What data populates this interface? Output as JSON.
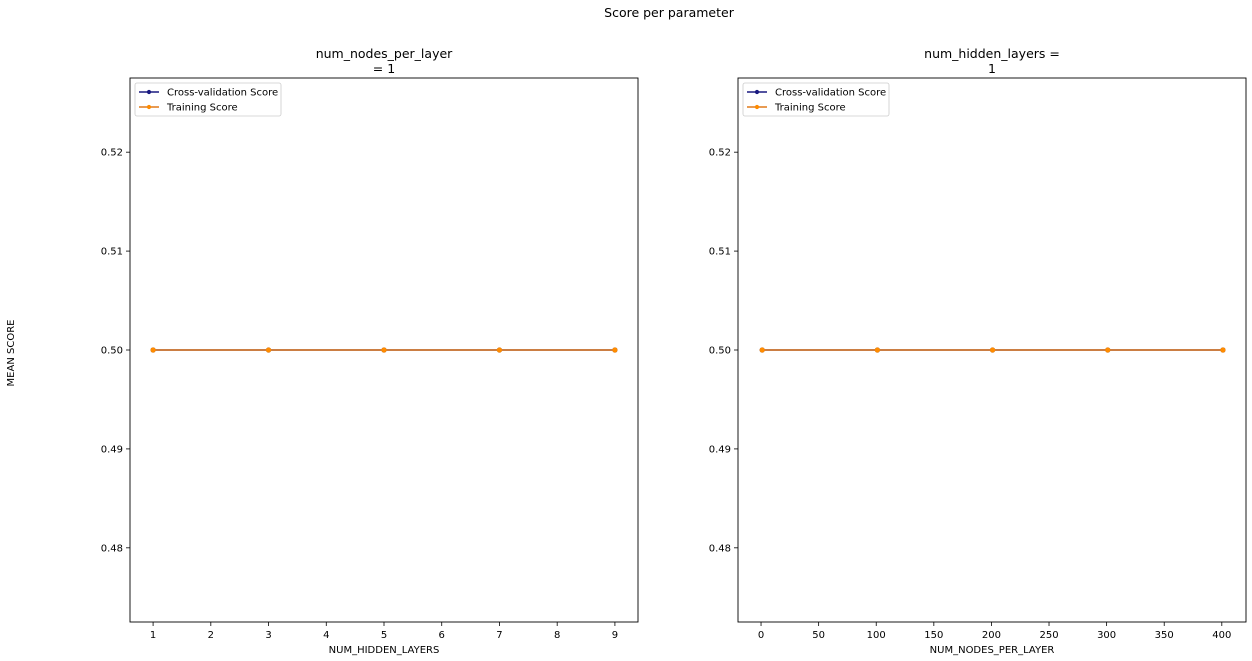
{
  "suptitle": "Score per parameter",
  "ylabel": "MEAN SCORE",
  "colors": {
    "cv": "#1a1a80",
    "train": "#ff8c00",
    "train_line": "#e07a1a"
  },
  "chart_data": [
    {
      "type": "line",
      "title_lines": [
        "num_nodes_per_layer",
        "= 1"
      ],
      "xlabel": "NUM_HIDDEN_LAYERS",
      "xlim": [
        0.6,
        9.4
      ],
      "xticks": [
        1,
        2,
        3,
        4,
        5,
        6,
        7,
        8,
        9
      ],
      "ylim": [
        0.4725,
        0.5275
      ],
      "yticks": [
        0.48,
        0.49,
        0.5,
        0.51,
        0.52
      ],
      "ytick_labels": [
        "0.48",
        "0.49",
        "0.50",
        "0.51",
        "0.52"
      ],
      "legend": "top-left",
      "x": [
        1,
        3,
        5,
        7,
        9
      ],
      "series": [
        {
          "name": "Cross-validation Score",
          "values": [
            0.5,
            0.5,
            0.5,
            0.5,
            0.5
          ]
        },
        {
          "name": "Training Score",
          "values": [
            0.5,
            0.5,
            0.5,
            0.5,
            0.5
          ]
        }
      ]
    },
    {
      "type": "line",
      "title_lines": [
        "num_hidden_layers =",
        "1"
      ],
      "xlabel": "NUM_NODES_PER_LAYER",
      "xlim": [
        -20,
        421
      ],
      "xticks": [
        0,
        50,
        100,
        150,
        200,
        250,
        300,
        350,
        400
      ],
      "ylim": [
        0.4725,
        0.5275
      ],
      "yticks": [
        0.48,
        0.49,
        0.5,
        0.51,
        0.52
      ],
      "ytick_labels": [
        "0.48",
        "0.49",
        "0.50",
        "0.51",
        "0.52"
      ],
      "legend": "top-left",
      "x": [
        1,
        101,
        201,
        301,
        401
      ],
      "series": [
        {
          "name": "Cross-validation Score",
          "values": [
            0.5,
            0.5,
            0.5,
            0.5,
            0.5
          ]
        },
        {
          "name": "Training Score",
          "values": [
            0.5,
            0.5,
            0.5,
            0.5,
            0.5
          ]
        }
      ]
    }
  ]
}
